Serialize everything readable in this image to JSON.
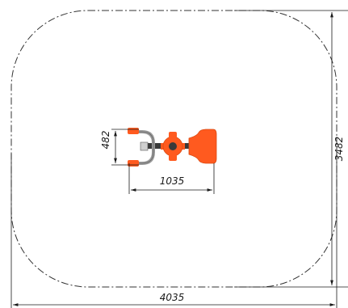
{
  "drawing": {
    "dimensions": {
      "overall_width": "4035",
      "overall_depth": "3482",
      "equipment_length": "1035",
      "equipment_width": "482"
    },
    "colors": {
      "line": "#1a1a1a",
      "zone_outline": "#333333",
      "equipment_fill": "#ff5a1f",
      "equipment_dark": "#d94a12",
      "metal": "#9a9a9a",
      "metal_dark": "#555555",
      "shaft": "#3a3a3a"
    }
  }
}
